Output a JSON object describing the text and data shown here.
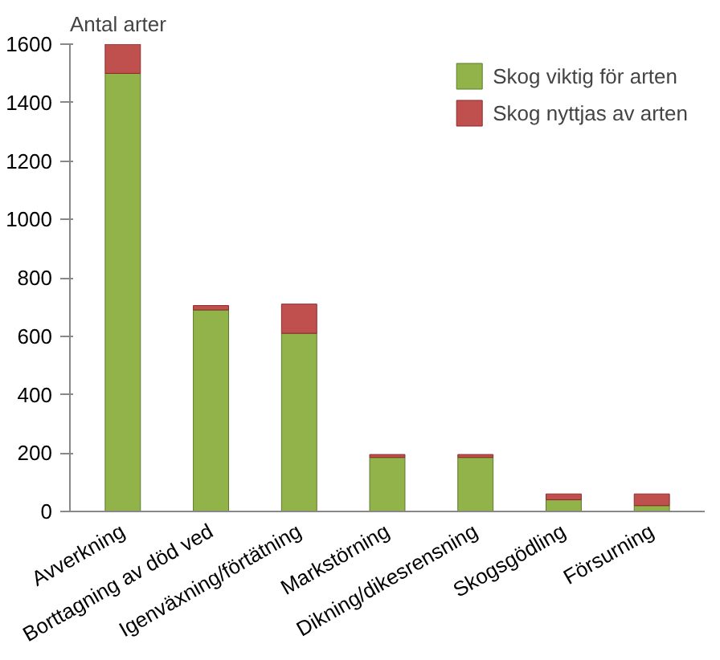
{
  "chart_data": {
    "type": "bar",
    "stacked": true,
    "ylabel": "Antal arter",
    "categories": [
      "Avverkning",
      "Borttagning av död ved",
      "Igenväxning/förtätning",
      "Markstörning",
      "Dikning/dikesrensning",
      "Skogsgödling",
      "Försurning"
    ],
    "series": [
      {
        "name": "Skog viktig för arten",
        "color": "#92b24a",
        "values": [
          1500,
          690,
          610,
          185,
          185,
          40,
          20
        ]
      },
      {
        "name": "Skog nyttjas av arten",
        "color": "#c0504d",
        "values": [
          100,
          15,
          100,
          10,
          10,
          20,
          40
        ]
      }
    ],
    "ylim": [
      0,
      1600
    ],
    "yticks": [
      0,
      200,
      400,
      600,
      800,
      1000,
      1200,
      1400,
      1600
    ],
    "grid": false,
    "legend": "top right"
  }
}
